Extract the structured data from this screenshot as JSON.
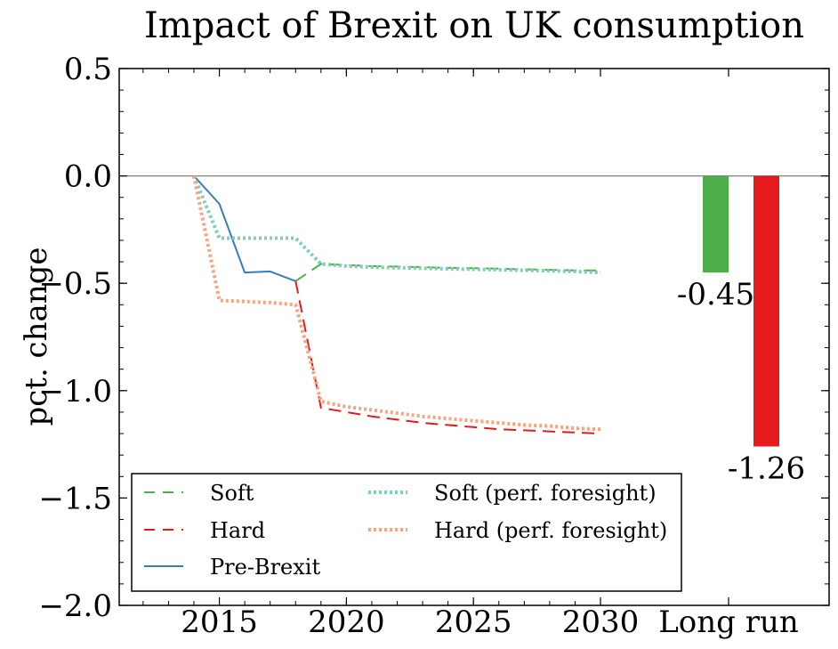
{
  "chart_data": {
    "type": "line",
    "title": "Impact of Brexit on UK consumption",
    "ylabel": "pct. change",
    "xlabel": "",
    "ylim": [
      -2.0,
      0.5
    ],
    "xlim": [
      2011,
      2030
    ],
    "yticks": [
      0.5,
      0.0,
      -0.5,
      -1.0,
      -1.5,
      -2.0
    ],
    "ytick_labels": [
      "0.5",
      "0.0",
      "−0.5",
      "−1.0",
      "−1.5",
      "−2.0"
    ],
    "xticks": [
      2015,
      2020,
      2025,
      2030
    ],
    "xtick_labels": [
      "2015",
      "2020",
      "2025",
      "2030"
    ],
    "extra_category_label": "Long run",
    "grid": false,
    "legend_position": "lower-left",
    "reference_line": 0.0,
    "series": [
      {
        "name": "Soft",
        "style": "dashed",
        "color": "#4daf4a",
        "x": [
          2018,
          2019,
          2020,
          2021,
          2022,
          2023,
          2024,
          2025,
          2026,
          2027,
          2028,
          2029,
          2030
        ],
        "y": [
          -0.49,
          -0.41,
          -0.415,
          -0.42,
          -0.422,
          -0.425,
          -0.428,
          -0.43,
          -0.432,
          -0.435,
          -0.437,
          -0.44,
          -0.44
        ]
      },
      {
        "name": "Hard",
        "style": "dashed",
        "color": "#e41a1c",
        "x": [
          2018,
          2019,
          2020,
          2021,
          2022,
          2023,
          2024,
          2025,
          2026,
          2027,
          2028,
          2029,
          2030
        ],
        "y": [
          -0.49,
          -1.08,
          -1.1,
          -1.12,
          -1.135,
          -1.15,
          -1.16,
          -1.17,
          -1.18,
          -1.185,
          -1.19,
          -1.195,
          -1.2
        ]
      },
      {
        "name": "Pre-Brexit",
        "style": "solid",
        "color": "#377eb8",
        "x": [
          2014,
          2015,
          2016,
          2017,
          2018
        ],
        "y": [
          0.0,
          -0.13,
          -0.45,
          -0.445,
          -0.49
        ]
      },
      {
        "name": "Soft (perf. foresight)",
        "style": "dotted",
        "color": "#7fcdbb",
        "x": [
          2014,
          2015,
          2016,
          2017,
          2018,
          2019,
          2020,
          2021,
          2022,
          2023,
          2024,
          2025,
          2026,
          2027,
          2028,
          2029,
          2030
        ],
        "y": [
          0.0,
          -0.29,
          -0.29,
          -0.29,
          -0.29,
          -0.41,
          -0.42,
          -0.425,
          -0.428,
          -0.43,
          -0.433,
          -0.435,
          -0.437,
          -0.44,
          -0.442,
          -0.445,
          -0.45
        ]
      },
      {
        "name": "Hard (perf. foresight)",
        "style": "dotted",
        "color": "#f4a582",
        "x": [
          2014,
          2015,
          2016,
          2017,
          2018,
          2019,
          2020,
          2021,
          2022,
          2023,
          2024,
          2025,
          2026,
          2027,
          2028,
          2029,
          2030
        ],
        "y": [
          0.0,
          -0.58,
          -0.585,
          -0.59,
          -0.6,
          -1.05,
          -1.075,
          -1.09,
          -1.105,
          -1.12,
          -1.13,
          -1.14,
          -1.15,
          -1.16,
          -1.165,
          -1.175,
          -1.18
        ]
      }
    ],
    "long_run_bars": [
      {
        "series": "Soft",
        "value": -0.45,
        "label": "-0.45",
        "color": "#4daf4a"
      },
      {
        "series": "Hard",
        "value": -1.26,
        "label": "-1.26",
        "color": "#e41a1c"
      }
    ]
  }
}
